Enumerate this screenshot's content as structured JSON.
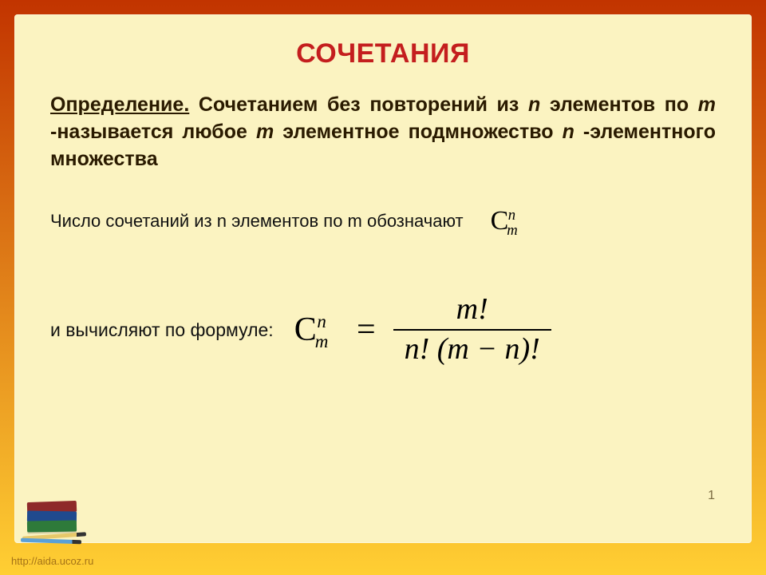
{
  "colors": {
    "outer_top": "#c23400",
    "outer_bot": "#ffcf33",
    "panel_bg": "#fbf3c1",
    "panel_border": "#c9a84a",
    "title": "#c41e1e",
    "text_dark": "#2a1a00"
  },
  "title": "СОЧЕТАНИЯ",
  "definition": {
    "label": "Определение.",
    "body_parts": [
      " Сочетанием без повторений из ",
      "n",
      " элементов по ",
      "m",
      " -называется любое ",
      "m",
      " элементное подмножество ",
      "n",
      " -элементного множества"
    ]
  },
  "line2_text": "Число сочетаний из n элементов по m обозначают",
  "notation": {
    "base": "C",
    "sub": "m",
    "sup": "n"
  },
  "line3_text": "и вычисляют по формуле:",
  "formula": {
    "lhs": {
      "base": "C",
      "sub": "m",
      "sup": "n"
    },
    "numerator": "m!",
    "denominator": "n! (m − n)!"
  },
  "page_number": "1",
  "credit": "http://aida.ucoz.ru"
}
